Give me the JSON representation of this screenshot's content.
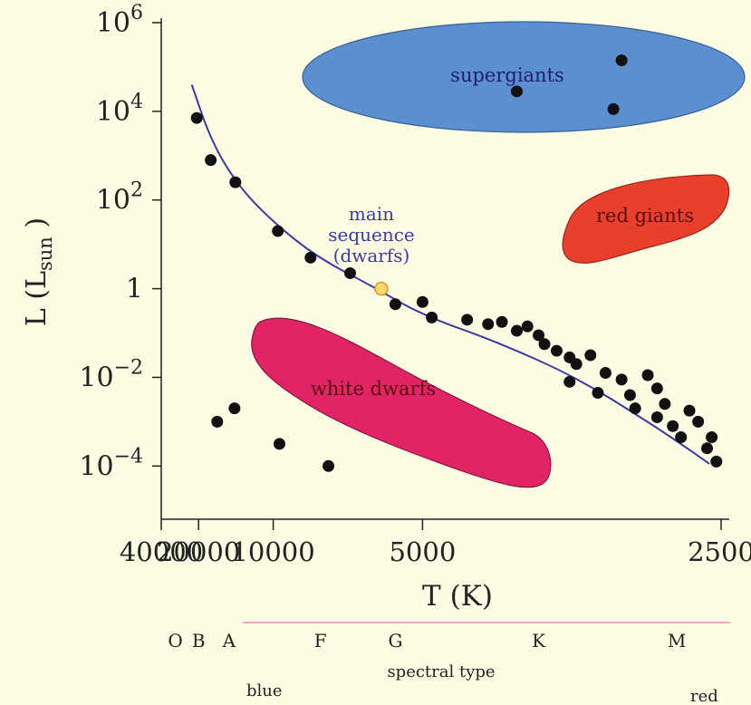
{
  "chart_data": {
    "type": "scatter",
    "xlabel": "T (K)",
    "ylabel_main": "L (L",
    "ylabel_sub": "sun",
    "ylabel_close": ")",
    "x_scale": "reciprocal",
    "y_scale": "log10",
    "xlim": [
      40000,
      2500
    ],
    "ylim_log10": [
      -5.2,
      6
    ],
    "x_ticks": [
      {
        "value": 40000,
        "label": "40000"
      },
      {
        "value": 20000,
        "label": "20000"
      },
      {
        "value": 10000,
        "label": "10000"
      },
      {
        "value": 5000,
        "label": "5000"
      },
      {
        "value": 2500,
        "label": "2500"
      }
    ],
    "y_ticks": [
      {
        "log10": 6,
        "base": "10",
        "exp": "6"
      },
      {
        "log10": 4,
        "base": "10",
        "exp": "4"
      },
      {
        "log10": 2,
        "base": "10",
        "exp": "2"
      },
      {
        "log10": 0,
        "base": "1",
        "exp": ""
      },
      {
        "log10": -2,
        "base": "10",
        "exp": "−2"
      },
      {
        "log10": -4,
        "base": "10",
        "exp": "−4"
      }
    ],
    "regions": [
      {
        "name": "supergiants",
        "label": "supergiants",
        "color": "#5b8fd0"
      },
      {
        "name": "red-giants",
        "label": "red giants",
        "color": "#e8402c"
      },
      {
        "name": "white-dwarfs",
        "label": "white dwarfs",
        "color": "#e02466"
      }
    ],
    "main_sequence_label": [
      "main",
      "sequence",
      "(dwarfs)"
    ],
    "main_sequence_color": "#3a3aa8",
    "main_sequence_curve": [
      {
        "T": 22000,
        "logL": 4.6
      },
      {
        "T": 17000,
        "logL": 3.3
      },
      {
        "T": 13000,
        "logL": 2.3
      },
      {
        "T": 10000,
        "logL": 1.5
      },
      {
        "T": 7700,
        "logL": 0.7
      },
      {
        "T": 6000,
        "logL": 0.05
      },
      {
        "T": 5000,
        "logL": -0.6
      },
      {
        "T": 4000,
        "logL": -1.2
      },
      {
        "T": 3300,
        "logL": -2.0
      },
      {
        "T": 2850,
        "logL": -3.0
      },
      {
        "T": 2650,
        "logL": -3.6
      },
      {
        "T": 2550,
        "logL": -3.95
      }
    ],
    "sun": {
      "T": 5800,
      "logL": 0,
      "color": "#f6dc66",
      "stroke": "#e0902e"
    },
    "stars_main_sequence": [
      {
        "T": 20500,
        "logL": 3.85
      },
      {
        "T": 17200,
        "logL": 2.9
      },
      {
        "T": 13400,
        "logL": 2.4
      },
      {
        "T": 9700,
        "logL": 1.3
      },
      {
        "T": 8000,
        "logL": 0.7
      },
      {
        "T": 6600,
        "logL": 0.35
      },
      {
        "T": 5500,
        "logL": -0.35
      },
      {
        "T": 5000,
        "logL": -0.3
      },
      {
        "T": 4850,
        "logL": -0.65
      },
      {
        "T": 4350,
        "logL": -0.7
      },
      {
        "T": 4100,
        "logL": -0.8
      },
      {
        "T": 3950,
        "logL": -0.75
      },
      {
        "T": 3800,
        "logL": -0.95
      },
      {
        "T": 3700,
        "logL": -0.85
      },
      {
        "T": 3600,
        "logL": -1.05
      },
      {
        "T": 3550,
        "logL": -1.25
      },
      {
        "T": 3450,
        "logL": -1.4
      },
      {
        "T": 3350,
        "logL": -1.55
      },
      {
        "T": 3300,
        "logL": -1.7
      },
      {
        "T": 3350,
        "logL": -2.1
      },
      {
        "T": 3200,
        "logL": -1.5
      },
      {
        "T": 3100,
        "logL": -1.9
      },
      {
        "T": 3150,
        "logL": -2.35
      },
      {
        "T": 3000,
        "logL": -2.05
      },
      {
        "T": 2950,
        "logL": -2.4
      },
      {
        "T": 2920,
        "logL": -2.7
      },
      {
        "T": 2850,
        "logL": -1.95
      },
      {
        "T": 2800,
        "logL": -2.25
      },
      {
        "T": 2760,
        "logL": -2.6
      },
      {
        "T": 2800,
        "logL": -2.9
      },
      {
        "T": 2720,
        "logL": -3.1
      },
      {
        "T": 2680,
        "logL": -3.35
      },
      {
        "T": 2640,
        "logL": -2.75
      },
      {
        "T": 2600,
        "logL": -3.0
      },
      {
        "T": 2560,
        "logL": -3.6
      },
      {
        "T": 2540,
        "logL": -3.35
      },
      {
        "T": 2520,
        "logL": -3.9
      }
    ],
    "stars_supergiants": [
      {
        "T": 3000,
        "logL": 5.15
      },
      {
        "T": 3800,
        "logL": 4.45
      },
      {
        "T": 3050,
        "logL": 4.05
      }
    ],
    "stars_white_dwarfs": [
      {
        "T": 16000,
        "logL": -3.0
      },
      {
        "T": 13500,
        "logL": -2.7
      },
      {
        "T": 9600,
        "logL": -3.5
      },
      {
        "T": 7300,
        "logL": -4.0
      }
    ],
    "spectral_types": [
      {
        "label": "O",
        "T": 29000
      },
      {
        "label": "B",
        "T": 20000
      },
      {
        "label": "A",
        "T": 14200
      },
      {
        "label": "F",
        "T": 7600
      },
      {
        "label": "G",
        "T": 5500
      },
      {
        "label": "K",
        "T": 3600
      },
      {
        "label": "M",
        "T": 2700
      }
    ],
    "spectral_label": "spectral type",
    "color_blue": "blue",
    "color_red": "red",
    "spectral_line_color": "#e07aa6"
  }
}
